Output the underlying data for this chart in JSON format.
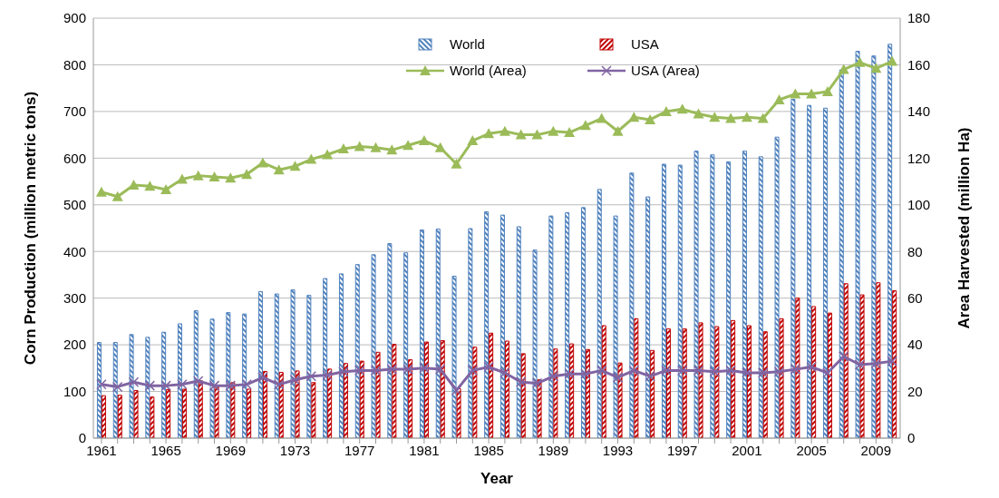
{
  "chart_data": {
    "type": "bar",
    "xlabel": "Year",
    "ylabel": "Corn Production (million metric tons)",
    "y2label": "Area Harvested (million Ha)",
    "categories": [
      "1961",
      null,
      null,
      null,
      "1965",
      null,
      null,
      null,
      "1969",
      null,
      null,
      null,
      "1973",
      null,
      null,
      null,
      "1977",
      null,
      null,
      null,
      "1981",
      null,
      null,
      null,
      "1985",
      null,
      null,
      null,
      "1989",
      null,
      null,
      null,
      "1993",
      null,
      null,
      null,
      "1997",
      null,
      null,
      null,
      "2001",
      null,
      null,
      null,
      "2005",
      null,
      null,
      null,
      "2009",
      null
    ],
    "series": [
      {
        "name": "World",
        "color": "#4f81bd",
        "values": [
          205,
          205,
          222,
          216,
          227,
          245,
          273,
          255,
          269,
          266,
          314,
          309,
          318,
          306,
          342,
          352,
          372,
          393,
          417,
          397,
          446,
          448,
          347,
          449,
          485,
          478,
          453,
          403,
          476,
          483,
          494,
          533,
          476,
          568,
          517,
          587,
          585,
          615,
          607,
          592,
          615,
          603,
          645,
          726,
          713,
          707,
          789,
          829,
          819,
          844
        ]
      },
      {
        "name": "USA",
        "color": "#c00000",
        "values": [
          91,
          92,
          102,
          88,
          104,
          105,
          123,
          113,
          119,
          105,
          143,
          141,
          144,
          119,
          148,
          160,
          165,
          184,
          201,
          168,
          206,
          209,
          106,
          195,
          225,
          208,
          181,
          125,
          191,
          202,
          190,
          241,
          161,
          256,
          188,
          234,
          234,
          247,
          239,
          252,
          241,
          228,
          256,
          300,
          282,
          268,
          331,
          307,
          333,
          316
        ]
      },
      {
        "name": "World (Area)",
        "type": "line",
        "axis": "y2",
        "marker": "triangle",
        "color": "#9bbb59",
        "values": [
          105.5,
          103.5,
          108.5,
          108,
          106.5,
          111,
          112.5,
          112,
          111.5,
          113,
          118,
          115,
          116.5,
          119.5,
          121.5,
          124,
          125,
          124.5,
          123.5,
          125.5,
          127.5,
          124.5,
          117.5,
          127.5,
          130.5,
          131.5,
          130,
          130,
          131.5,
          131,
          134,
          137,
          131.5,
          137.5,
          136.5,
          140,
          141,
          139,
          137.5,
          137,
          137.5,
          137,
          145,
          147.5,
          147.5,
          148.5,
          158,
          161,
          158.5,
          161.5
        ]
      },
      {
        "name": "USA (Area)",
        "type": "line",
        "axis": "y2",
        "marker": "cross",
        "color": "#8064a2",
        "values": [
          23,
          22,
          24,
          22.5,
          22.5,
          23,
          24.5,
          22.5,
          22.5,
          23,
          26,
          23,
          25,
          26.5,
          27,
          28.5,
          29,
          29,
          29.5,
          29.5,
          30,
          29.5,
          20.5,
          29,
          30.5,
          28,
          24,
          23.5,
          26.5,
          27.5,
          27.5,
          29,
          26,
          29,
          26.5,
          29,
          29,
          29,
          28.5,
          29,
          28,
          28,
          28.5,
          29.5,
          30.5,
          28,
          35,
          31.5,
          32,
          33
        ]
      }
    ],
    "ylim": [
      0,
      900
    ],
    "yticks": [
      0,
      100,
      200,
      300,
      400,
      500,
      600,
      700,
      800,
      900
    ],
    "y2lim": [
      0,
      180
    ],
    "y2ticks": [
      0,
      20,
      40,
      60,
      80,
      100,
      120,
      140,
      160,
      180
    ],
    "grid": "y",
    "legend": "top",
    "line_style": "solid"
  }
}
